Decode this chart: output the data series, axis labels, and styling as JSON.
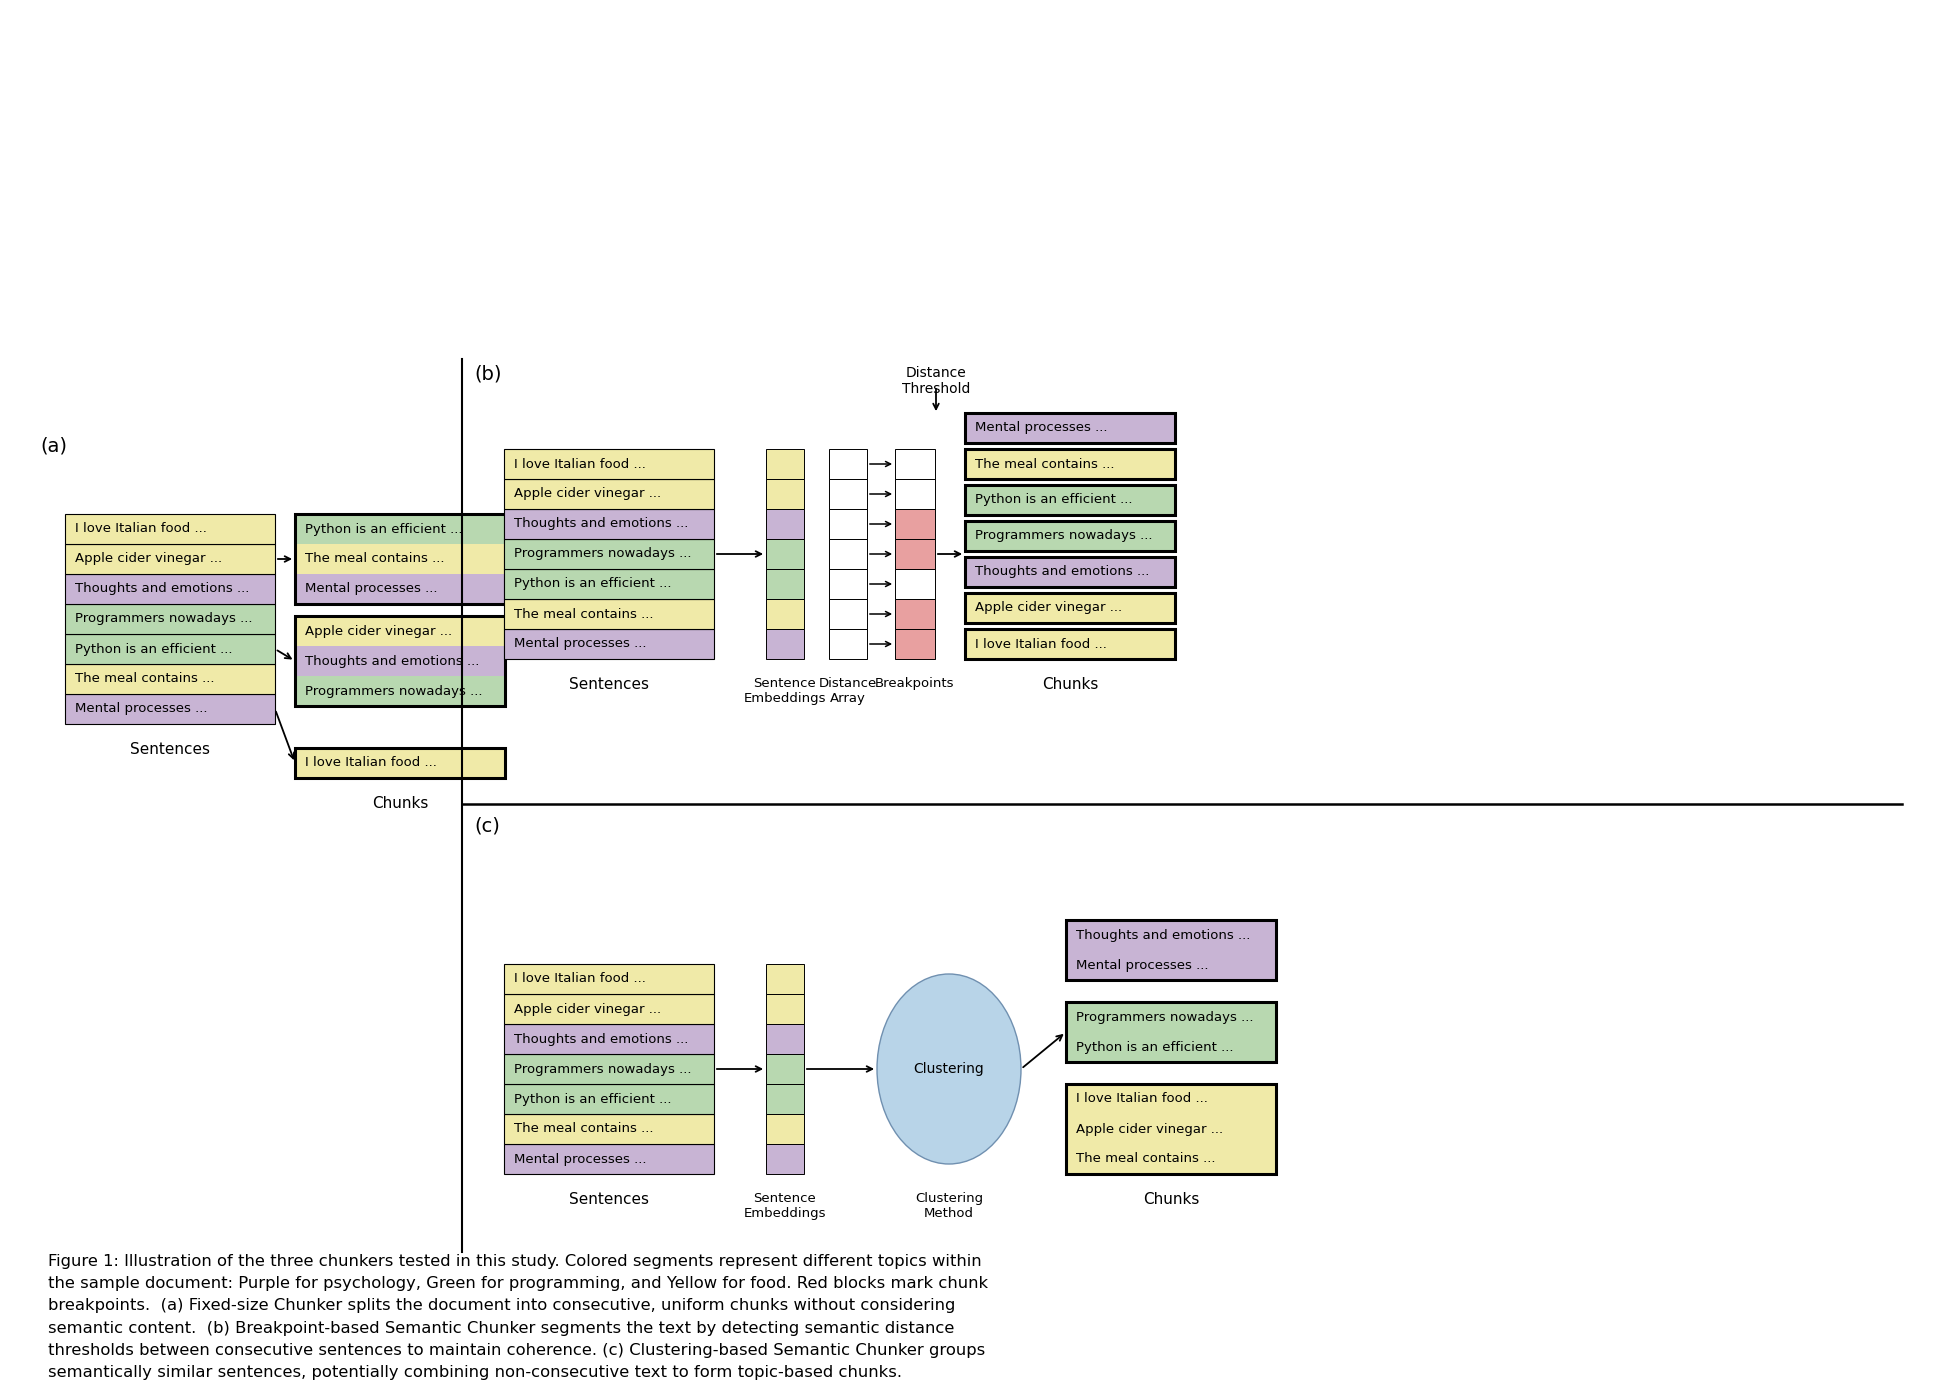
{
  "sentences": [
    "Mental processes ...",
    "The meal contains ...",
    "Python is an efficient ...",
    "Programmers nowadays ...",
    "Thoughts and emotions ...",
    "Apple cider vinegar ...",
    "I love Italian food ..."
  ],
  "colors": {
    "purple": "#C8B4D4",
    "yellow": "#F0EAA8",
    "green": "#B8D8B0",
    "red": "#E8A0A0",
    "white": "#FFFFFF",
    "light_blue": "#B8D4E8"
  },
  "sentence_colors": [
    "purple",
    "yellow",
    "green",
    "green",
    "purple",
    "yellow",
    "yellow"
  ],
  "bg_color": "#FFFFFF",
  "caption": "Figure 1: Illustration of the three chunkers tested in this study. Colored segments represent different topics within\nthe sample document: Purple for psychology, Green for programming, and Yellow for food. Red blocks mark chunk\nbreakpoints.  (a) Fixed-size Chunker splits the document into consecutive, uniform chunks without considering\nsemantic content.  (b) Breakpoint-based Semantic Chunker segments the text by detecting semantic distance\nthresholds between consecutive sentences to maintain coherence. (c) Clustering-based Semantic Chunker groups\nsemantically similar sentences, potentially combining non-consecutive text to form topic-based chunks."
}
